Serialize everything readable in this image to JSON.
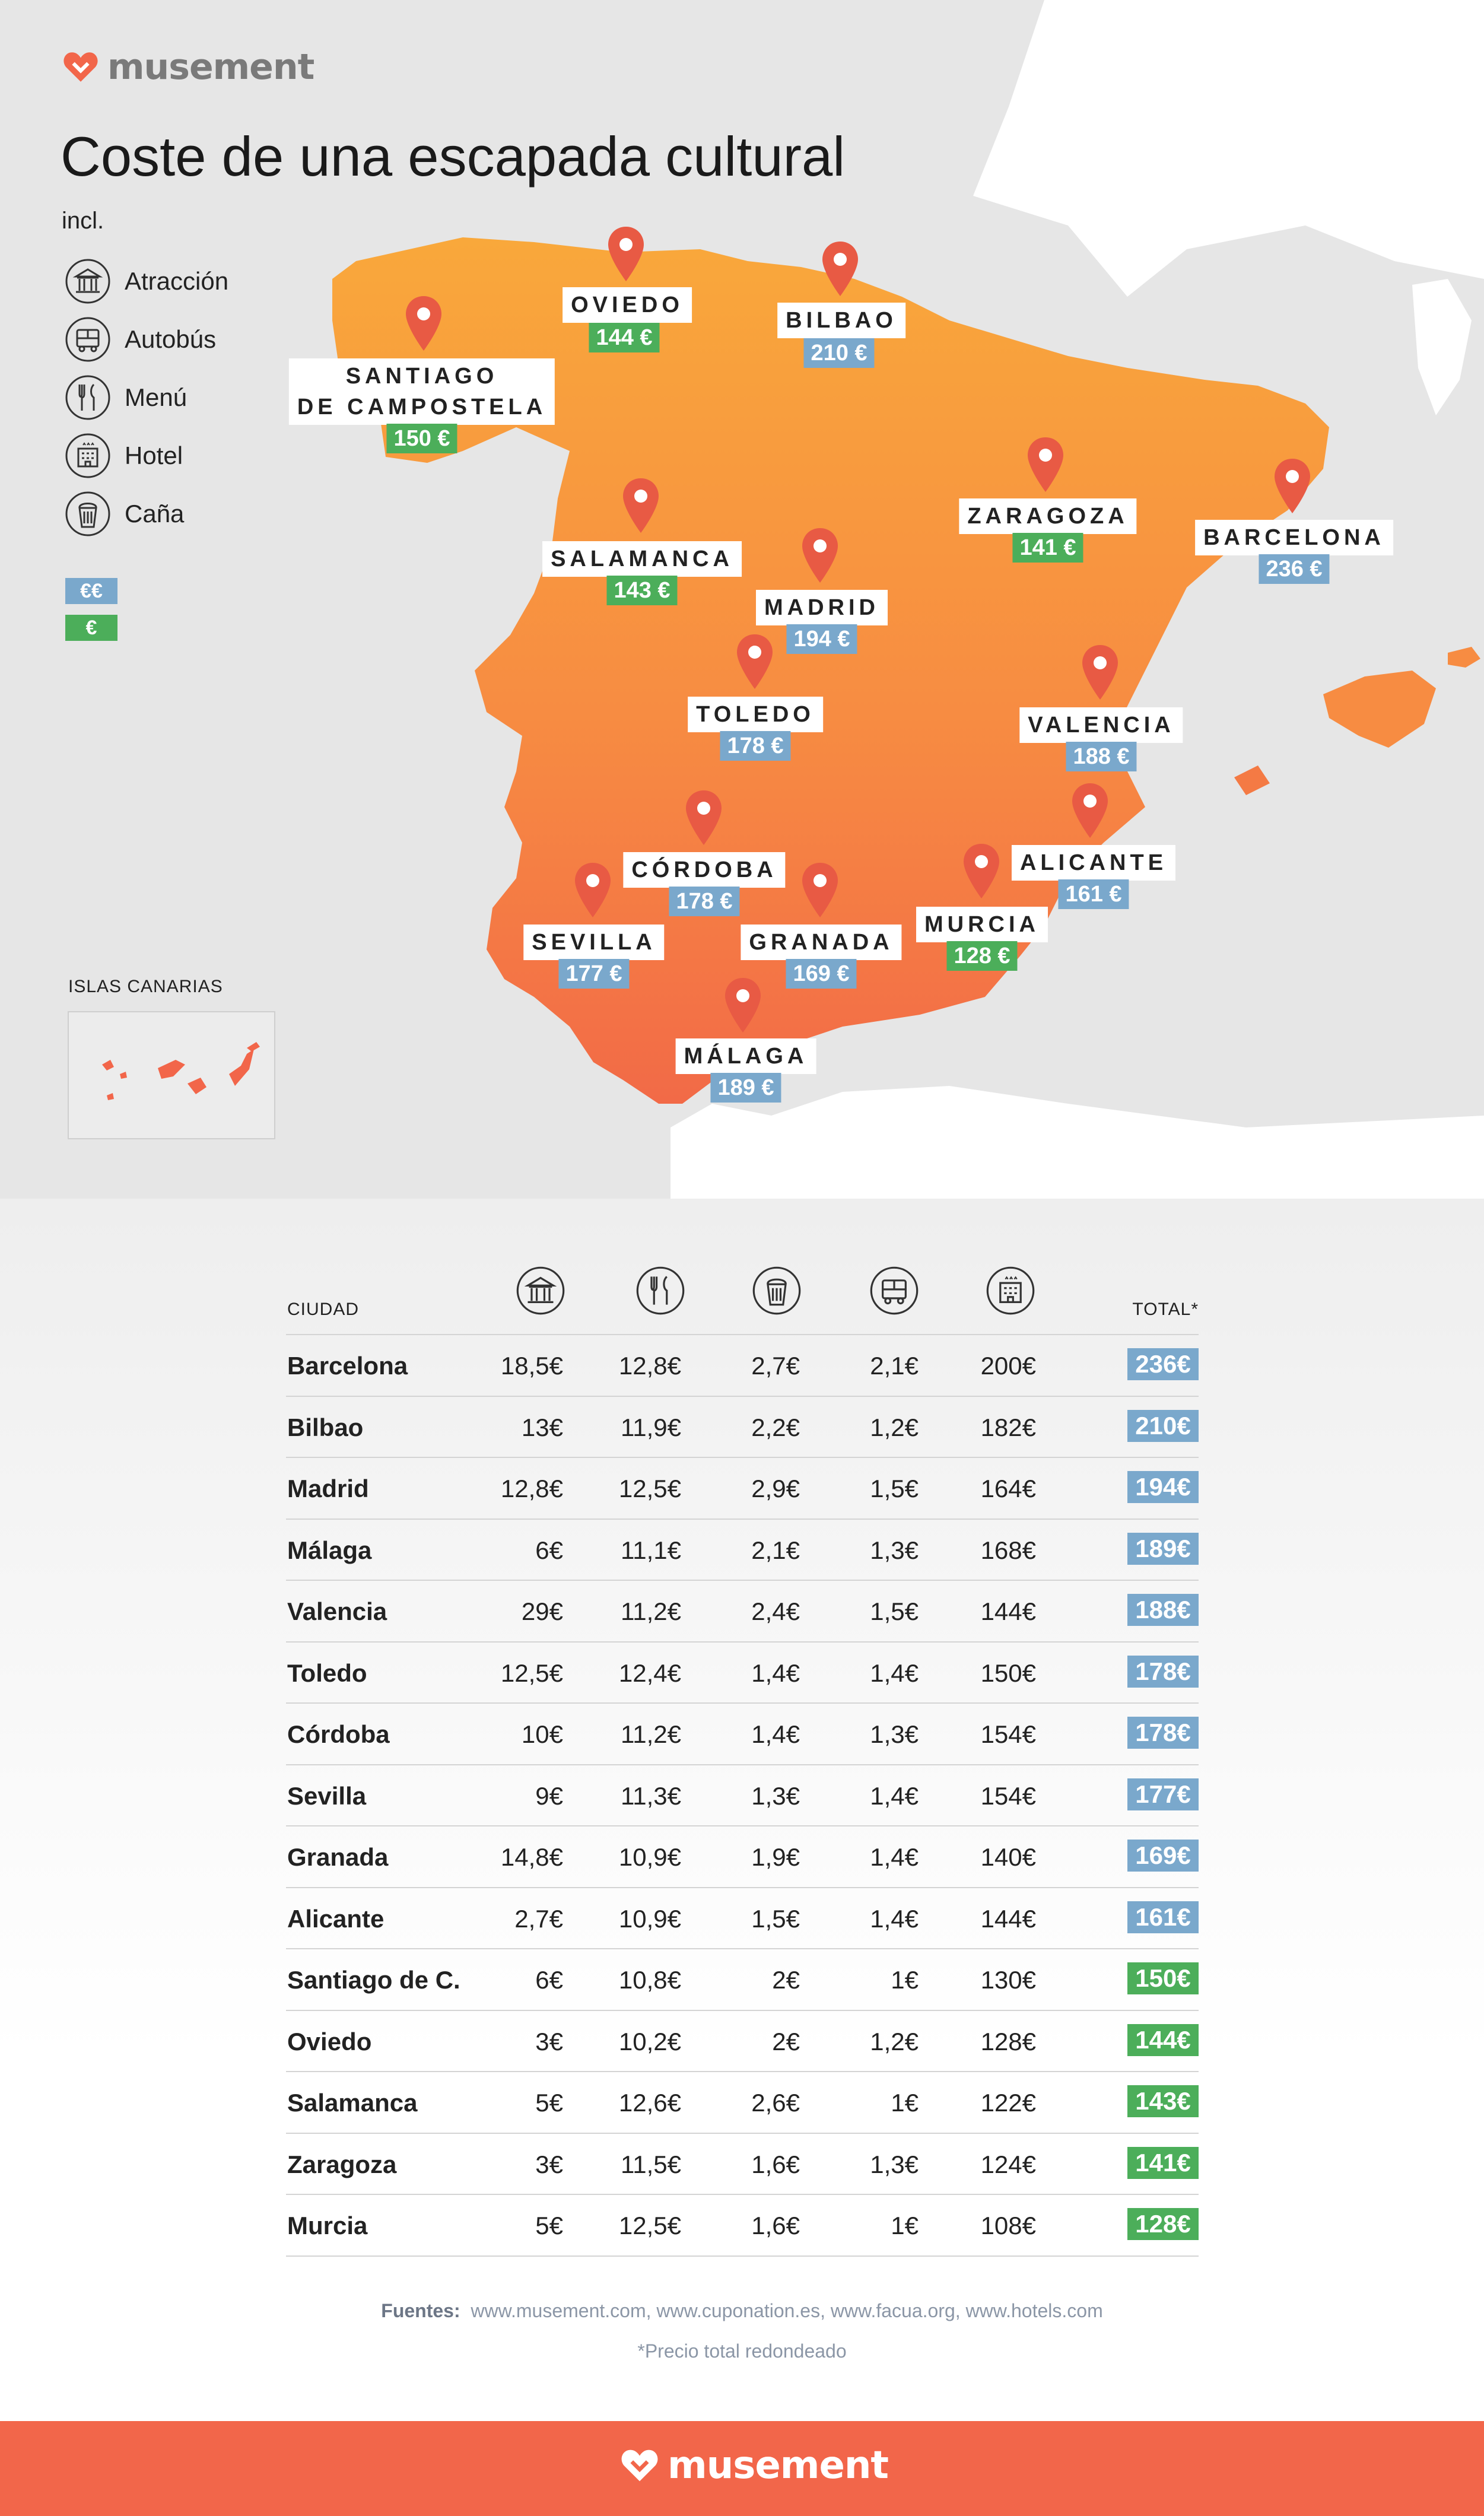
{
  "brand": {
    "name": "musement",
    "heart_color": "#f2664a"
  },
  "title": "Coste de una escapada cultural",
  "legend": {
    "incl_label": "incl.",
    "items": [
      {
        "label": "Atracción",
        "icon": "museum-icon"
      },
      {
        "label": "Autobús",
        "icon": "bus-icon"
      },
      {
        "label": "Menú",
        "icon": "cutlery-icon"
      },
      {
        "label": "Hotel",
        "icon": "hotel-icon"
      },
      {
        "label": "Caña",
        "icon": "beer-icon"
      }
    ],
    "price_keys": [
      {
        "label": "€€",
        "color": "#7aa8cc"
      },
      {
        "label": "€",
        "color": "#4cae5a"
      }
    ]
  },
  "map": {
    "land_gradient": [
      "#f9a83b",
      "#f26a47"
    ],
    "sea_color": "#e6e6e6",
    "canary_islands_label": "ISLAS CANARIAS",
    "cities": [
      {
        "name": "OVIEDO",
        "price": "144 €",
        "level": "€"
      },
      {
        "name": "BILBAO",
        "price": "210 €",
        "level": "€€"
      },
      {
        "name": "SANTIAGO\nDE CAMPOSTELA",
        "price": "150 €",
        "level": "€"
      },
      {
        "name": "ZARAGOZA",
        "price": "141 €",
        "level": "€"
      },
      {
        "name": "BARCELONA",
        "price": "236 €",
        "level": "€€"
      },
      {
        "name": "SALAMANCA",
        "price": "143 €",
        "level": "€"
      },
      {
        "name": "MADRID",
        "price": "194 €",
        "level": "€€"
      },
      {
        "name": "TOLEDO",
        "price": "178 €",
        "level": "€€"
      },
      {
        "name": "VALENCIA",
        "price": "188 €",
        "level": "€€"
      },
      {
        "name": "ALICANTE",
        "price": "161 €",
        "level": "€€"
      },
      {
        "name": "CÓRDOBA",
        "price": "178 €",
        "level": "€€"
      },
      {
        "name": "SEVILLA",
        "price": "177 €",
        "level": "€€"
      },
      {
        "name": "GRANADA",
        "price": "169 €",
        "level": "€€"
      },
      {
        "name": "MURCIA",
        "price": "128 €",
        "level": "€"
      },
      {
        "name": "MÁLAGA",
        "price": "189 €",
        "level": "€€"
      }
    ]
  },
  "table": {
    "headers": {
      "city": "CIUDAD",
      "total": "TOTAL*",
      "icons": [
        "museum-icon",
        "cutlery-icon",
        "beer-icon",
        "bus-icon",
        "hotel-icon"
      ]
    },
    "rows": [
      {
        "city": "Barcelona",
        "atraccion": "18,5€",
        "menu": "12,8€",
        "cana": "2,7€",
        "autobus": "2,1€",
        "hotel": "200€",
        "total": "236€",
        "level": "€€"
      },
      {
        "city": "Bilbao",
        "atraccion": "13€",
        "menu": "11,9€",
        "cana": "2,2€",
        "autobus": "1,2€",
        "hotel": "182€",
        "total": "210€",
        "level": "€€"
      },
      {
        "city": "Madrid",
        "atraccion": "12,8€",
        "menu": "12,5€",
        "cana": "2,9€",
        "autobus": "1,5€",
        "hotel": "164€",
        "total": "194€",
        "level": "€€"
      },
      {
        "city": "Málaga",
        "atraccion": "6€",
        "menu": "11,1€",
        "cana": "2,1€",
        "autobus": "1,3€",
        "hotel": "168€",
        "total": "189€",
        "level": "€€"
      },
      {
        "city": "Valencia",
        "atraccion": "29€",
        "menu": "11,2€",
        "cana": "2,4€",
        "autobus": "1,5€",
        "hotel": "144€",
        "total": "188€",
        "level": "€€"
      },
      {
        "city": "Toledo",
        "atraccion": "12,5€",
        "menu": "12,4€",
        "cana": "1,4€",
        "autobus": "1,4€",
        "hotel": "150€",
        "total": "178€",
        "level": "€€"
      },
      {
        "city": "Córdoba",
        "atraccion": "10€",
        "menu": "11,2€",
        "cana": "1,4€",
        "autobus": "1,3€",
        "hotel": "154€",
        "total": "178€",
        "level": "€€"
      },
      {
        "city": "Sevilla",
        "atraccion": "9€",
        "menu": "11,3€",
        "cana": "1,3€",
        "autobus": "1,4€",
        "hotel": "154€",
        "total": "177€",
        "level": "€€"
      },
      {
        "city": "Granada",
        "atraccion": "14,8€",
        "menu": "10,9€",
        "cana": "1,9€",
        "autobus": "1,4€",
        "hotel": "140€",
        "total": "169€",
        "level": "€€"
      },
      {
        "city": "Alicante",
        "atraccion": "2,7€",
        "menu": "10,9€",
        "cana": "1,5€",
        "autobus": "1,4€",
        "hotel": "144€",
        "total": "161€",
        "level": "€€"
      },
      {
        "city": "Santiago de C.",
        "atraccion": "6€",
        "menu": "10,8€",
        "cana": "2€",
        "autobus": "1€",
        "hotel": "130€",
        "total": "150€",
        "level": "€"
      },
      {
        "city": "Oviedo",
        "atraccion": "3€",
        "menu": "10,2€",
        "cana": "2€",
        "autobus": "1,2€",
        "hotel": "128€",
        "total": "144€",
        "level": "€"
      },
      {
        "city": "Salamanca",
        "atraccion": "5€",
        "menu": "12,6€",
        "cana": "2,6€",
        "autobus": "1€",
        "hotel": "122€",
        "total": "143€",
        "level": "€"
      },
      {
        "city": "Zaragoza",
        "atraccion": "3€",
        "menu": "11,5€",
        "cana": "1,6€",
        "autobus": "1,3€",
        "hotel": "124€",
        "total": "141€",
        "level": "€"
      },
      {
        "city": "Murcia",
        "atraccion": "5€",
        "menu": "12,5€",
        "cana": "1,6€",
        "autobus": "1€",
        "hotel": "108€",
        "total": "128€",
        "level": "€"
      }
    ]
  },
  "sources": {
    "label": "Fuentes:",
    "text": "www.musement.com, www.cuponation.es, www.facua.org, www.hotels.com"
  },
  "footnote": "*Precio total redondeado"
}
